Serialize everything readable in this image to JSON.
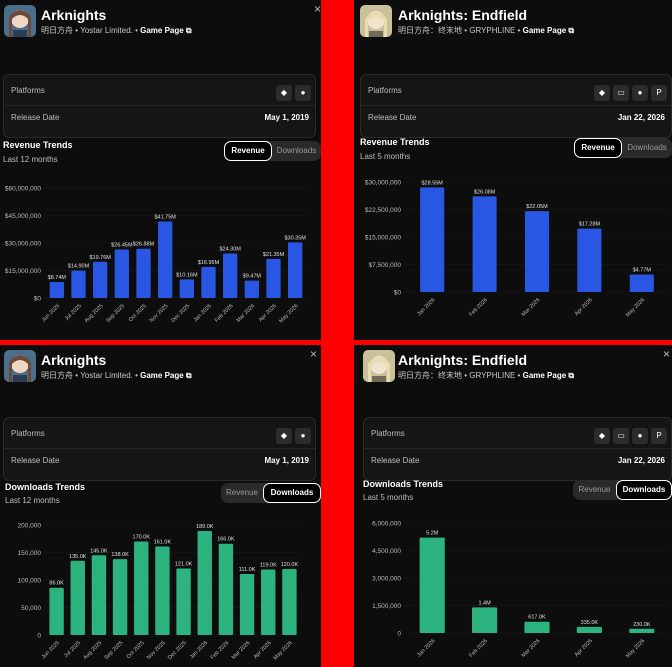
{
  "colors": {
    "separator": "#ff0000",
    "panel_bg": "#0d0d0d",
    "revenue_bar": "#2957e3",
    "downloads_bar": "#2db37f"
  },
  "panels": [
    {
      "game": {
        "title": "Arknights",
        "subtitle": "明日方舟  •  Yostar Limited.  •",
        "game_page": "Game Page ⧉"
      },
      "info": {
        "platforms_label": "Platforms",
        "platform_icons": [
          "android-icon",
          "apple-icon"
        ],
        "release_label": "Release Date",
        "release_date": "May 1, 2019"
      },
      "section": {
        "title": "Revenue Trends",
        "subtitle": "Last 12 months"
      },
      "toggle": {
        "revenue": "Revenue",
        "downloads": "Downloads",
        "active": "revenue"
      },
      "close": "×",
      "chart_data": {
        "type": "bar",
        "metric": "revenue",
        "categories": [
          "Jun 2025",
          "Jul 2025",
          "Aug 2025",
          "Sep 2025",
          "Oct 2025",
          "Nov 2025",
          "Dec 2025",
          "Jan 2026",
          "Feb 2026",
          "Mar 2026",
          "Apr 2026",
          "May 2026"
        ],
        "values": [
          8.74,
          14.9,
          19.76,
          26.45,
          26.88,
          41.75,
          10.16,
          16.95,
          24.3,
          9.47,
          21.35,
          30.35
        ],
        "value_labels": [
          "$8.74M",
          "$14.90M",
          "$19.76M",
          "$26.45M",
          "$26.88M",
          "$41.75M",
          "$10.16M",
          "$16.95M",
          "$24.30M",
          "$9.47M",
          "$21.35M",
          "$30.35M"
        ],
        "yticks": [
          0,
          15,
          30,
          45,
          60
        ],
        "ytick_labels": [
          "$0",
          "$15,000,000",
          "$30,000,000",
          "$45,000,000",
          "$60,000,000"
        ],
        "ylim": [
          0,
          60
        ]
      }
    },
    {
      "game": {
        "title": "Arknights: Endfield",
        "subtitle": "明日方舟：终末地  •  GRYPHLINE  •",
        "game_page": "Game Page ⧉"
      },
      "info": {
        "platforms_label": "Platforms",
        "platform_icons": [
          "android-icon",
          "monitor-icon",
          "apple-icon",
          "playstation-icon"
        ],
        "release_label": "Release Date",
        "release_date": "Jan 22, 2026"
      },
      "section": {
        "title": "Revenue Trends",
        "subtitle": "Last 5 months"
      },
      "toggle": {
        "revenue": "Revenue",
        "downloads": "Downloads",
        "active": "revenue"
      },
      "close": "×",
      "chart_data": {
        "type": "bar",
        "metric": "revenue",
        "categories": [
          "Jan 2026",
          "Feb 2026",
          "Mar 2026",
          "Apr 2026",
          "May 2026"
        ],
        "values": [
          28.55,
          26.08,
          22.05,
          17.28,
          4.77
        ],
        "value_labels": [
          "$28.55M",
          "$26.08M",
          "$22.05M",
          "$17.28M",
          "$4.77M"
        ],
        "yticks": [
          0,
          7.5,
          15,
          22.5,
          30
        ],
        "ytick_labels": [
          "$0",
          "$7,500,000",
          "$15,000,000",
          "$22,500,000",
          "$30,000,000"
        ],
        "ylim": [
          0,
          30
        ]
      }
    },
    {
      "game": {
        "title": "Arknights",
        "subtitle": "明日方舟  •  Yostar Limited.  •",
        "game_page": "Game Page ⧉"
      },
      "info": {
        "platforms_label": "Platforms",
        "platform_icons": [
          "android-icon",
          "apple-icon"
        ],
        "release_label": "Release Date",
        "release_date": "May 1, 2019"
      },
      "section": {
        "title": "Downloads Trends",
        "subtitle": "Last 12 months"
      },
      "toggle": {
        "revenue": "Revenue",
        "downloads": "Downloads",
        "active": "downloads"
      },
      "close": "×",
      "chart_data": {
        "type": "bar",
        "metric": "downloads",
        "categories": [
          "Jun 2025",
          "Jul 2025",
          "Aug 2025",
          "Sep 2025",
          "Oct 2025",
          "Nov 2025",
          "Dec 2025",
          "Jan 2026",
          "Feb 2026",
          "Mar 2026",
          "Apr 2026",
          "May 2026"
        ],
        "values": [
          86,
          135,
          145,
          138,
          170,
          161,
          121,
          189,
          166,
          111,
          119,
          120
        ],
        "value_labels": [
          "86.0K",
          "135.0K",
          "145.0K",
          "138.0K",
          "170.0K",
          "161.0K",
          "121.0K",
          "189.0K",
          "166.0K",
          "111.0K",
          "119.0K",
          "120.0K"
        ],
        "yticks": [
          0,
          50,
          100,
          150,
          200
        ],
        "ytick_labels": [
          "0",
          "50,000",
          "100,000",
          "150,000",
          "200,000"
        ],
        "ylim": [
          0,
          200
        ]
      }
    },
    {
      "game": {
        "title": "Arknights: Endfield",
        "subtitle": "明日方舟：终末地  •  GRYPHLINE  •",
        "game_page": "Game Page ⧉"
      },
      "info": {
        "platforms_label": "Platforms",
        "platform_icons": [
          "android-icon",
          "monitor-icon",
          "apple-icon",
          "playstation-icon"
        ],
        "release_label": "Release Date",
        "release_date": "Jan 22, 2026"
      },
      "section": {
        "title": "Downloads Trends",
        "subtitle": "Last 5 months"
      },
      "toggle": {
        "revenue": "Revenue",
        "downloads": "Downloads",
        "active": "downloads"
      },
      "close": "×",
      "chart_data": {
        "type": "bar",
        "metric": "downloads",
        "categories": [
          "Jan 2026",
          "Feb 2026",
          "Mar 2026",
          "Apr 2026",
          "May 2026"
        ],
        "values": [
          5200,
          1400,
          617,
          335,
          230
        ],
        "value_labels": [
          "5.2M",
          "1.4M",
          "617.0K",
          "335.0K",
          "230.0K"
        ],
        "yticks": [
          0,
          1500,
          3000,
          4500,
          6000
        ],
        "ytick_labels": [
          "0",
          "1,500,000",
          "3,000,000",
          "4,500,000",
          "6,000,000"
        ],
        "ylim": [
          0,
          6000
        ]
      }
    }
  ]
}
